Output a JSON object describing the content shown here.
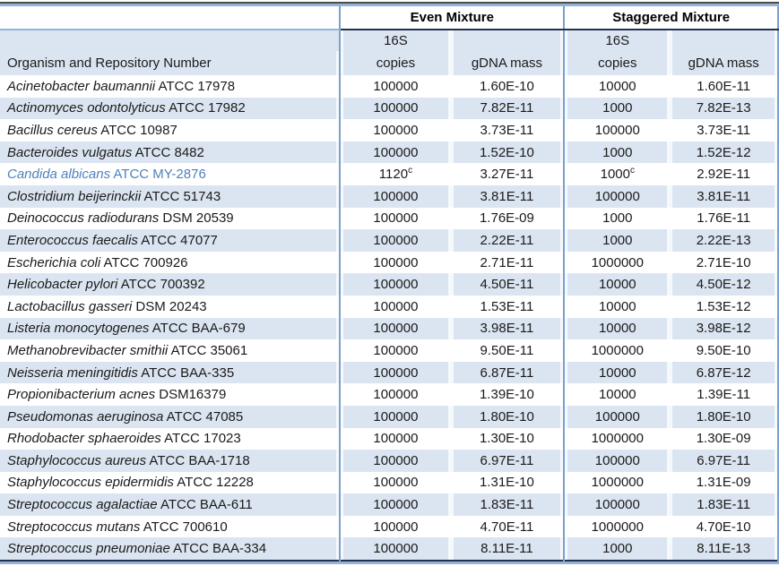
{
  "table": {
    "col_headers": {
      "organism": "Organism and Repository Number",
      "even_mixture": "Even Mixture",
      "staggered_mixture": "Staggered Mixture",
      "s16": "16S",
      "s16_2": "16S",
      "copies_even": "copies",
      "gdna_even": "gDNA mass",
      "copies_stag": "copies",
      "gdna_stag": "gDNA mass"
    },
    "rows": [
      {
        "organism": "Acinetobacter baumannii",
        "repository": "ATCC 17978",
        "even_copies": "100000",
        "even_gdna": "1.60E-10",
        "stag_copies": "10000",
        "stag_gdna": "1.60E-11"
      },
      {
        "organism": "Actinomyces odontolyticus",
        "repository": "ATCC 17982",
        "even_copies": "100000",
        "even_gdna": "7.82E-11",
        "stag_copies": "1000",
        "stag_gdna": "7.82E-13"
      },
      {
        "organism": "Bacillus cereus",
        "repository": "ATCC 10987",
        "even_copies": "100000",
        "even_gdna": "3.73E-11",
        "stag_copies": "100000",
        "stag_gdna": "3.73E-11"
      },
      {
        "organism": "Bacteroides vulgatus",
        "repository": "ATCC 8482",
        "even_copies": "100000",
        "even_gdna": "1.52E-10",
        "stag_copies": "1000",
        "stag_gdna": "1.52E-12"
      },
      {
        "organism": "Candida albicans",
        "repository": "ATCC MY-2876",
        "even_copies": "1120",
        "even_copies_sup": "c",
        "even_gdna": "3.27E-11",
        "stag_copies": "1000",
        "stag_copies_sup": "c",
        "stag_gdna": "2.92E-11",
        "highlight": true
      },
      {
        "organism": "Clostridium beijerinckii",
        "repository": "ATCC 51743",
        "even_copies": "100000",
        "even_gdna": "3.81E-11",
        "stag_copies": "100000",
        "stag_gdna": "3.81E-11"
      },
      {
        "organism": "Deinococcus radiodurans",
        "repository": "DSM 20539",
        "even_copies": "100000",
        "even_gdna": "1.76E-09",
        "stag_copies": "1000",
        "stag_gdna": "1.76E-11"
      },
      {
        "organism": "Enterococcus faecalis",
        "repository": "ATCC 47077",
        "even_copies": "100000",
        "even_gdna": "2.22E-11",
        "stag_copies": "1000",
        "stag_gdna": "2.22E-13"
      },
      {
        "organism": "Escherichia coli",
        "repository": "ATCC 700926",
        "even_copies": "100000",
        "even_gdna": "2.71E-11",
        "stag_copies": "1000000",
        "stag_gdna": "2.71E-10"
      },
      {
        "organism": "Helicobacter pylori",
        "repository": "ATCC 700392",
        "even_copies": "100000",
        "even_gdna": "4.50E-11",
        "stag_copies": "10000",
        "stag_gdna": "4.50E-12"
      },
      {
        "organism": "Lactobacillus gasseri",
        "repository": "DSM 20243",
        "even_copies": "100000",
        "even_gdna": "1.53E-11",
        "stag_copies": "10000",
        "stag_gdna": "1.53E-12"
      },
      {
        "organism": "Listeria monocytogenes",
        "repository": "ATCC BAA-679",
        "even_copies": "100000",
        "even_gdna": "3.98E-11",
        "stag_copies": "10000",
        "stag_gdna": "3.98E-12"
      },
      {
        "organism": "Methanobrevibacter smithii",
        "repository": "ATCC 35061",
        "even_copies": "100000",
        "even_gdna": "9.50E-11",
        "stag_copies": "1000000",
        "stag_gdna": "9.50E-10"
      },
      {
        "organism": "Neisseria meningitidis",
        "repository": "ATCC BAA-335",
        "even_copies": "100000",
        "even_gdna": "6.87E-11",
        "stag_copies": "10000",
        "stag_gdna": "6.87E-12"
      },
      {
        "organism": "Propionibacterium acnes",
        "repository": "DSM16379",
        "even_copies": "100000",
        "even_gdna": "1.39E-10",
        "stag_copies": "10000",
        "stag_gdna": "1.39E-11"
      },
      {
        "organism": "Pseudomonas aeruginosa",
        "repository": "ATCC 47085",
        "even_copies": "100000",
        "even_gdna": "1.80E-10",
        "stag_copies": "100000",
        "stag_gdna": "1.80E-10"
      },
      {
        "organism": "Rhodobacter sphaeroides",
        "repository": "ATCC 17023",
        "even_copies": "100000",
        "even_gdna": "1.30E-10",
        "stag_copies": "1000000",
        "stag_gdna": "1.30E-09"
      },
      {
        "organism": "Staphylococcus aureus",
        "repository": "ATCC BAA-1718",
        "even_copies": "100000",
        "even_gdna": "6.97E-11",
        "stag_copies": "100000",
        "stag_gdna": "6.97E-11"
      },
      {
        "organism": "Staphylococcus epidermidis",
        "repository": "ATCC 12228",
        "even_copies": "100000",
        "even_gdna": "1.31E-10",
        "stag_copies": "1000000",
        "stag_gdna": "1.31E-09"
      },
      {
        "organism": "Streptococcus agalactiae",
        "repository": "ATCC BAA-611",
        "even_copies": "100000",
        "even_gdna": "1.83E-11",
        "stag_copies": "100000",
        "stag_gdna": "1.83E-11"
      },
      {
        "organism": "Streptococcus mutans",
        "repository": "ATCC 700610",
        "even_copies": "100000",
        "even_gdna": "4.70E-11",
        "stag_copies": "1000000",
        "stag_gdna": "4.70E-10"
      },
      {
        "organism": "Streptococcus pneumoniae",
        "repository": "ATCC BAA-334",
        "even_copies": "100000",
        "even_gdna": "8.11E-11",
        "stag_copies": "1000",
        "stag_gdna": "8.11E-13"
      }
    ]
  },
  "colors": {
    "stripe_fill": "#dbe5f1",
    "border_blue": "#7ba0cd",
    "border_blue_light": "#95b3d7",
    "border_dark": "#23304f",
    "highlight_text": "#4f81bd"
  }
}
